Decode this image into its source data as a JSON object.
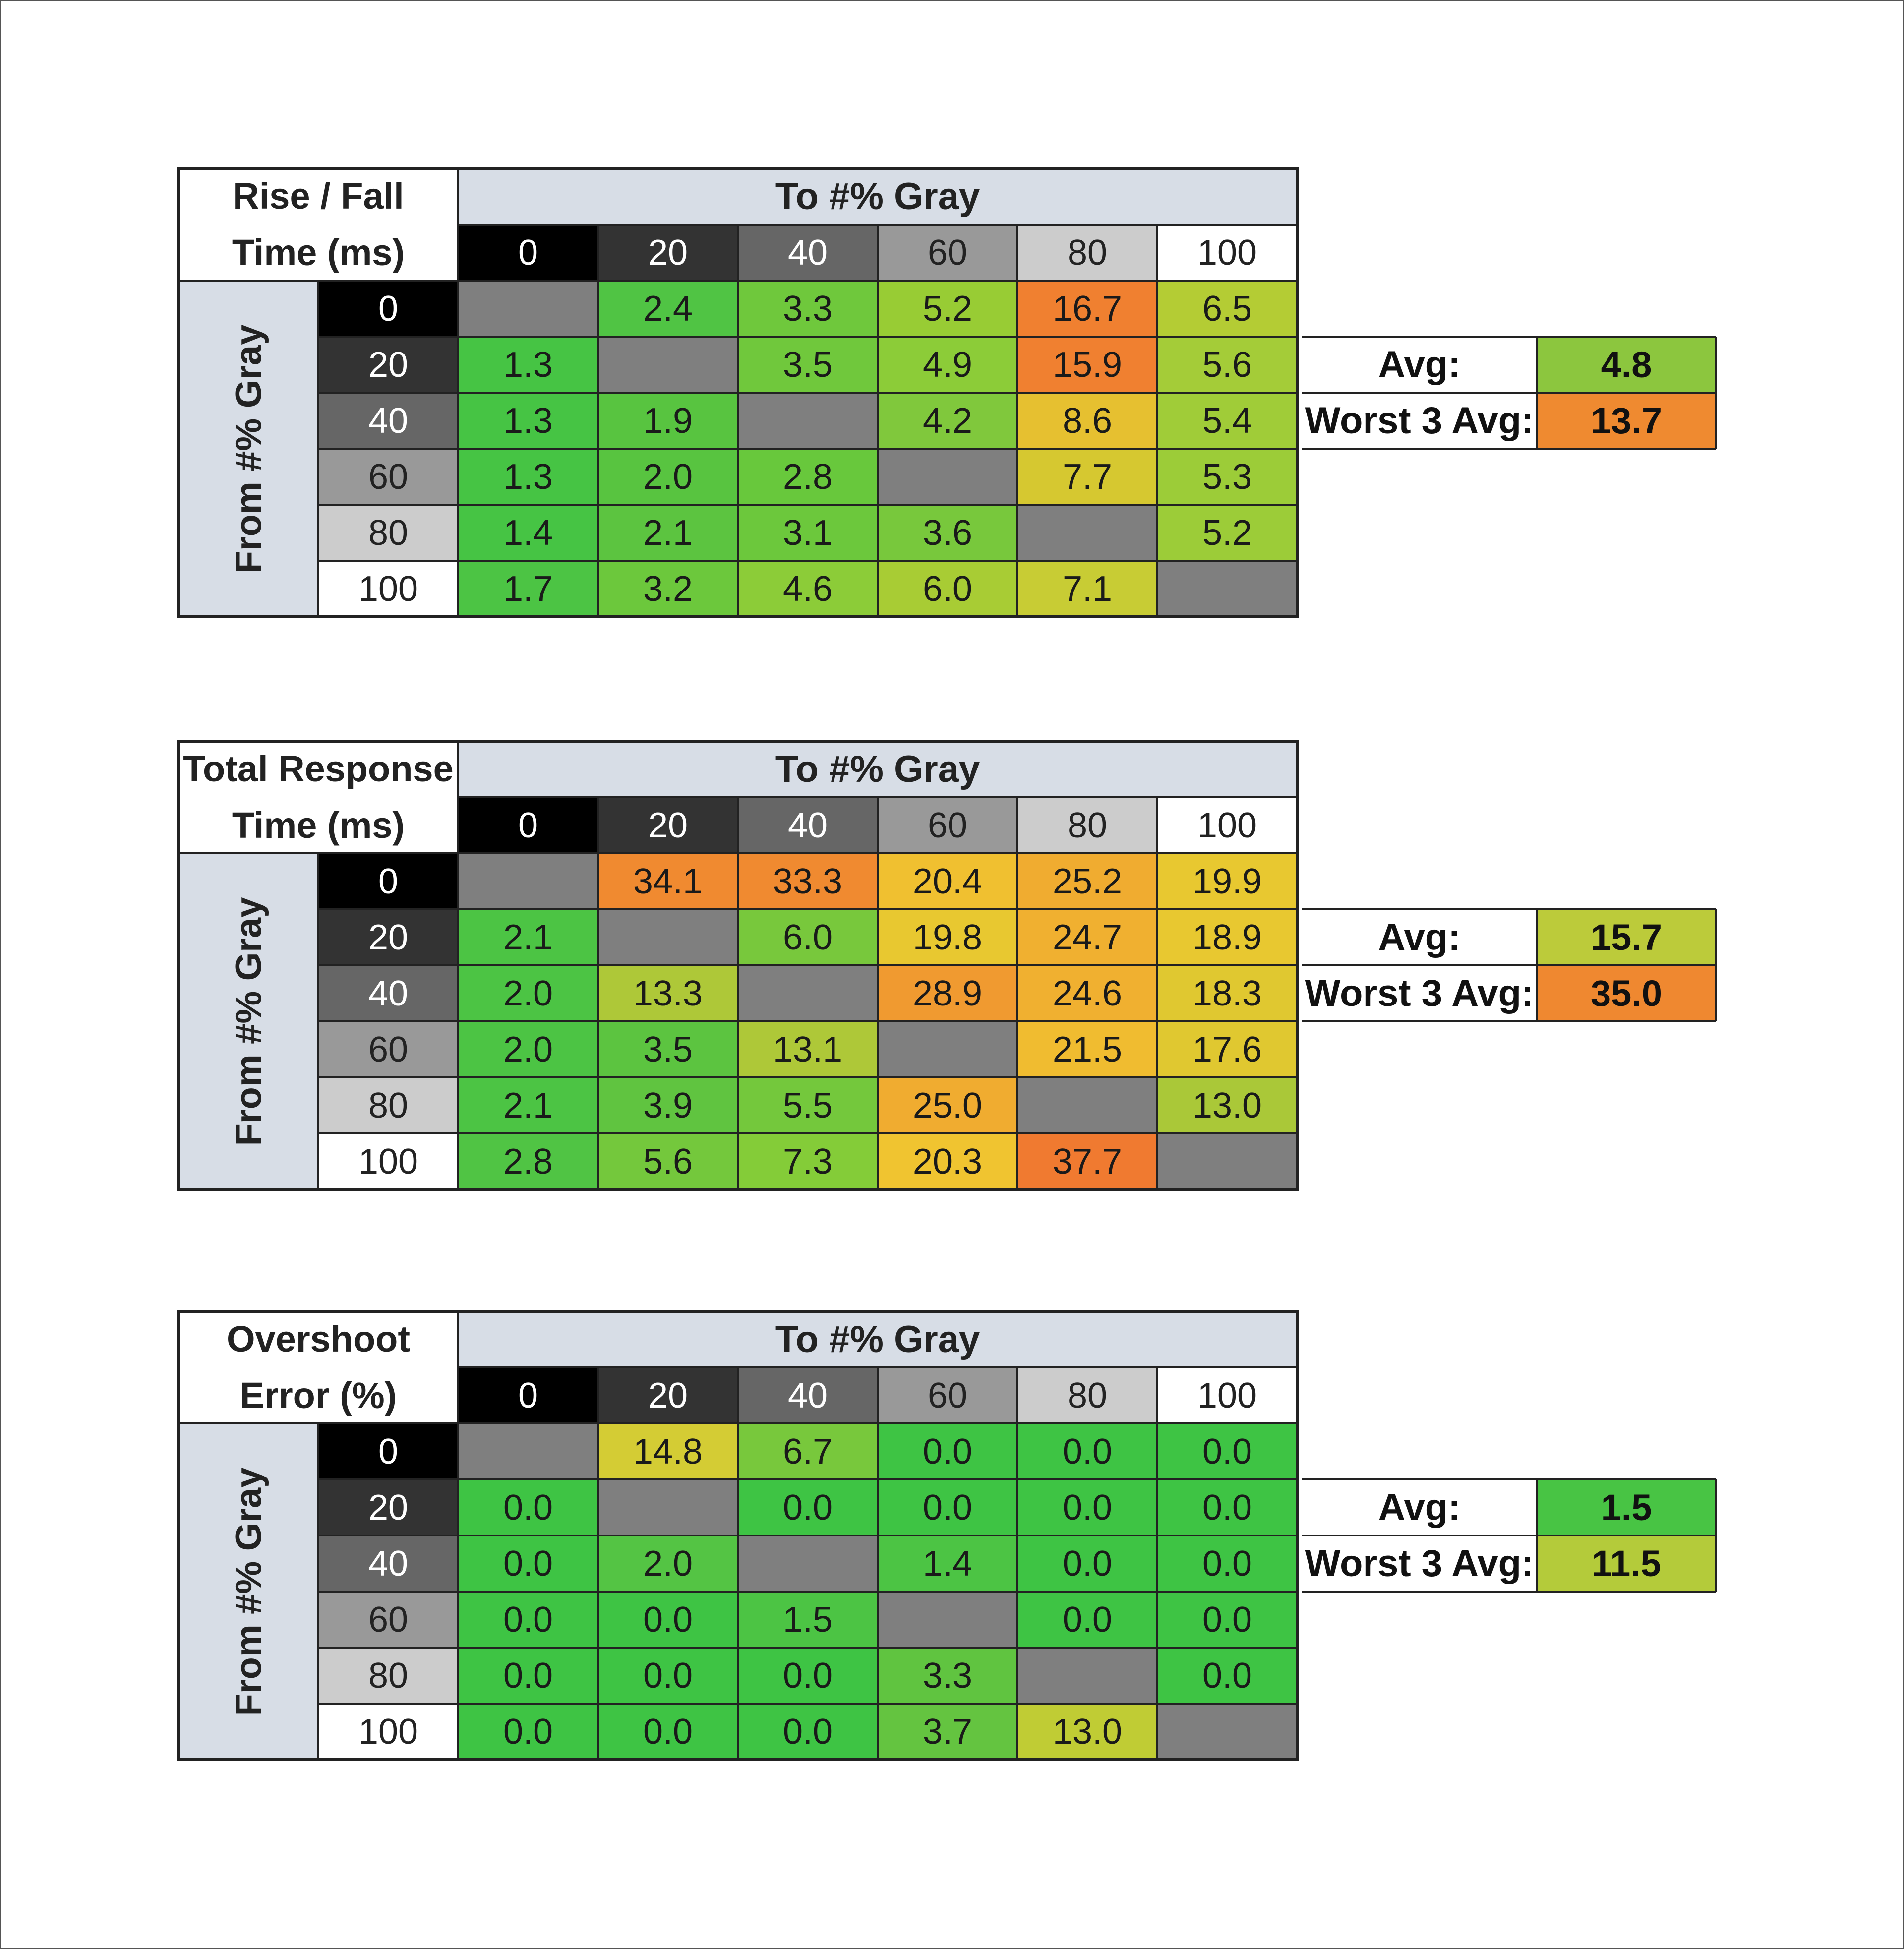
{
  "columns": [
    "0",
    "20",
    "40",
    "60",
    "80",
    "100"
  ],
  "rows": [
    "0",
    "20",
    "40",
    "60",
    "80",
    "100"
  ],
  "to_label": "To #% Gray",
  "from_label": "From #% Gray",
  "avg_label": "Avg:",
  "worst_label": "Worst 3 Avg:",
  "colors": {
    "header_blue": "#d7dde6",
    "gray_diag": "#7f7f7f",
    "shade": [
      "#000000",
      "#333333",
      "#666666",
      "#999999",
      "#cccccc",
      "#ffffff"
    ]
  },
  "chart_data": [
    {
      "type": "table",
      "title_lines": [
        "Rise / Fall",
        "Time (ms)"
      ],
      "values": [
        [
          null,
          "2.4",
          "3.3",
          "5.2",
          "16.7",
          "6.5"
        ],
        [
          "1.3",
          null,
          "3.5",
          "4.9",
          "15.9",
          "5.6"
        ],
        [
          "1.3",
          "1.9",
          null,
          "4.2",
          "8.6",
          "5.4"
        ],
        [
          "1.3",
          "2.0",
          "2.8",
          null,
          "7.7",
          "5.3"
        ],
        [
          "1.4",
          "2.1",
          "3.1",
          "3.6",
          null,
          "5.2"
        ],
        [
          "1.7",
          "3.2",
          "4.6",
          "6.0",
          "7.1",
          null
        ]
      ],
      "colors": [
        [
          null,
          "#50c444",
          "#6fc83c",
          "#98cc34",
          "#f08030",
          "#b4cc34"
        ],
        [
          "#46c444",
          null,
          "#70c83c",
          "#8ccc38",
          "#f08030",
          "#a4cc38"
        ],
        [
          "#46c444",
          "#58c440",
          null,
          "#80c83c",
          "#e6c030",
          "#a0cc38"
        ],
        [
          "#46c444",
          "#58c440",
          "#68c83c",
          null,
          "#d6c830",
          "#9ccc38"
        ],
        [
          "#46c444",
          "#5cc440",
          "#6cc83c",
          "#78c83c",
          null,
          "#9ccc38"
        ],
        [
          "#4cc444",
          "#6cc83c",
          "#8ccc38",
          "#a8cc34",
          "#c8cc34",
          null
        ]
      ],
      "avg": "4.8",
      "worst3": "13.7",
      "avg_color": "#8cc63e",
      "worst3_color": "#ef8a30"
    },
    {
      "type": "table",
      "title_lines": [
        "Total Response",
        "Time (ms)"
      ],
      "values": [
        [
          null,
          "34.1",
          "33.3",
          "20.4",
          "25.2",
          "19.9"
        ],
        [
          "2.1",
          null,
          "6.0",
          "19.8",
          "24.7",
          "18.9"
        ],
        [
          "2.0",
          "13.3",
          null,
          "28.9",
          "24.6",
          "18.3"
        ],
        [
          "2.0",
          "3.5",
          "13.1",
          null,
          "21.5",
          "17.6"
        ],
        [
          "2.1",
          "3.9",
          "5.5",
          "25.0",
          null,
          "13.0"
        ],
        [
          "2.8",
          "5.6",
          "7.3",
          "20.3",
          "37.7",
          null
        ]
      ],
      "colors": [
        [
          null,
          "#f08a30",
          "#f08a30",
          "#f0c030",
          "#f0ac30",
          "#e8c830"
        ],
        [
          "#4cc444",
          null,
          "#78c83c",
          "#e8c830",
          "#f0b030",
          "#e8c830"
        ],
        [
          "#4cc444",
          "#aec838",
          null,
          "#f09a30",
          "#f0b030",
          "#e0c830"
        ],
        [
          "#4cc444",
          "#5cc440",
          "#aec838",
          null,
          "#f0bc30",
          "#e0c830"
        ],
        [
          "#4cc444",
          "#60c440",
          "#74c83c",
          "#f0ac30",
          null,
          "#aac838"
        ],
        [
          "#50c444",
          "#74c83c",
          "#84cc38",
          "#f0c430",
          "#f07a30",
          null
        ]
      ],
      "avg": "15.7",
      "worst3": "35.0",
      "avg_color": "#bccb3a",
      "worst3_color": "#ef8830"
    },
    {
      "type": "table",
      "title_lines": [
        "Overshoot",
        "Error (%)"
      ],
      "values": [
        [
          null,
          "14.8",
          "6.7",
          "0.0",
          "0.0",
          "0.0"
        ],
        [
          "0.0",
          null,
          "0.0",
          "0.0",
          "0.0",
          "0.0"
        ],
        [
          "0.0",
          "2.0",
          null,
          "1.4",
          "0.0",
          "0.0"
        ],
        [
          "0.0",
          "0.0",
          "1.5",
          null,
          "0.0",
          "0.0"
        ],
        [
          "0.0",
          "0.0",
          "0.0",
          "3.3",
          null,
          "0.0"
        ],
        [
          "0.0",
          "0.0",
          "0.0",
          "3.7",
          "13.0",
          null
        ]
      ],
      "colors": [
        [
          null,
          "#d4cc34",
          "#78c83c",
          "#3ec444",
          "#3ec444",
          "#3ec444"
        ],
        [
          "#3ec444",
          null,
          "#3ec444",
          "#3ec444",
          "#3ec444",
          "#3ec444"
        ],
        [
          "#3ec444",
          "#54c444",
          null,
          "#4cc444",
          "#3ec444",
          "#3ec444"
        ],
        [
          "#3ec444",
          "#3ec444",
          "#4cc444",
          null,
          "#3ec444",
          "#3ec444"
        ],
        [
          "#3ec444",
          "#3ec444",
          "#3ec444",
          "#60c440",
          null,
          "#3ec444"
        ],
        [
          "#3ec444",
          "#3ec444",
          "#3ec444",
          "#64c440",
          "#c0cc34",
          null
        ]
      ],
      "avg": "1.5",
      "worst3": "11.5",
      "avg_color": "#48c444",
      "worst3_color": "#b4cb3a"
    }
  ]
}
